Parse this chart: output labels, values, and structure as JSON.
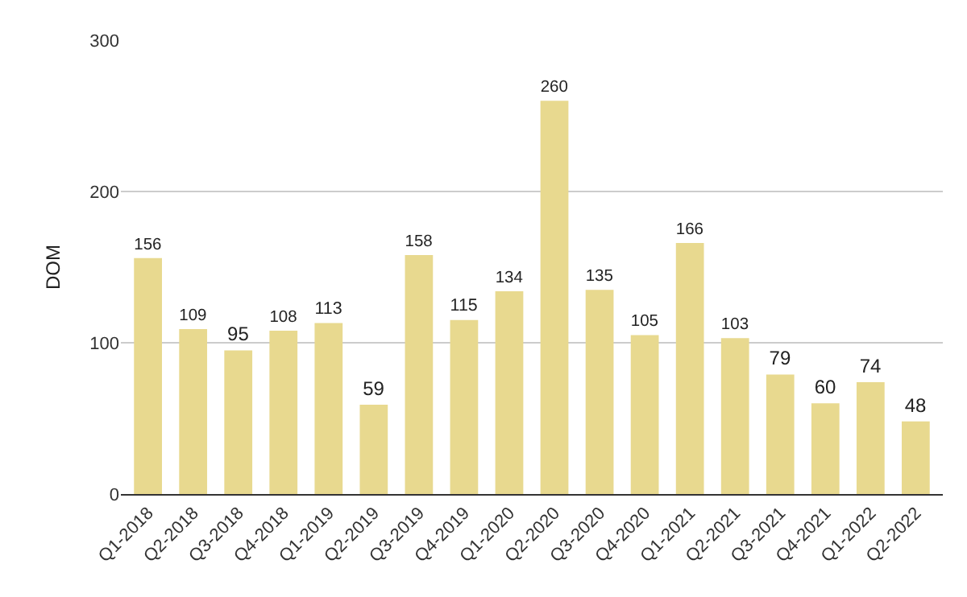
{
  "chart_data": {
    "type": "bar",
    "ylabel": "DOM",
    "categories": [
      "Q1-2018",
      "Q2-2018",
      "Q3-2018",
      "Q4-2018",
      "Q1-2019",
      "Q2-2019",
      "Q3-2019",
      "Q4-2019",
      "Q1-2020",
      "Q2-2020",
      "Q3-2020",
      "Q4-2020",
      "Q1-2021",
      "Q2-2021",
      "Q3-2021",
      "Q4-2021",
      "Q1-2022",
      "Q2-2022"
    ],
    "values": [
      156,
      109,
      95,
      108,
      113,
      59,
      158,
      115,
      134,
      260,
      135,
      105,
      166,
      103,
      79,
      60,
      74,
      48
    ],
    "color": "#e8d98f",
    "ylim": [
      0,
      300
    ],
    "yticks": [
      0,
      100,
      200,
      300
    ],
    "grid": "y",
    "data_labels": true,
    "legend": false
  }
}
